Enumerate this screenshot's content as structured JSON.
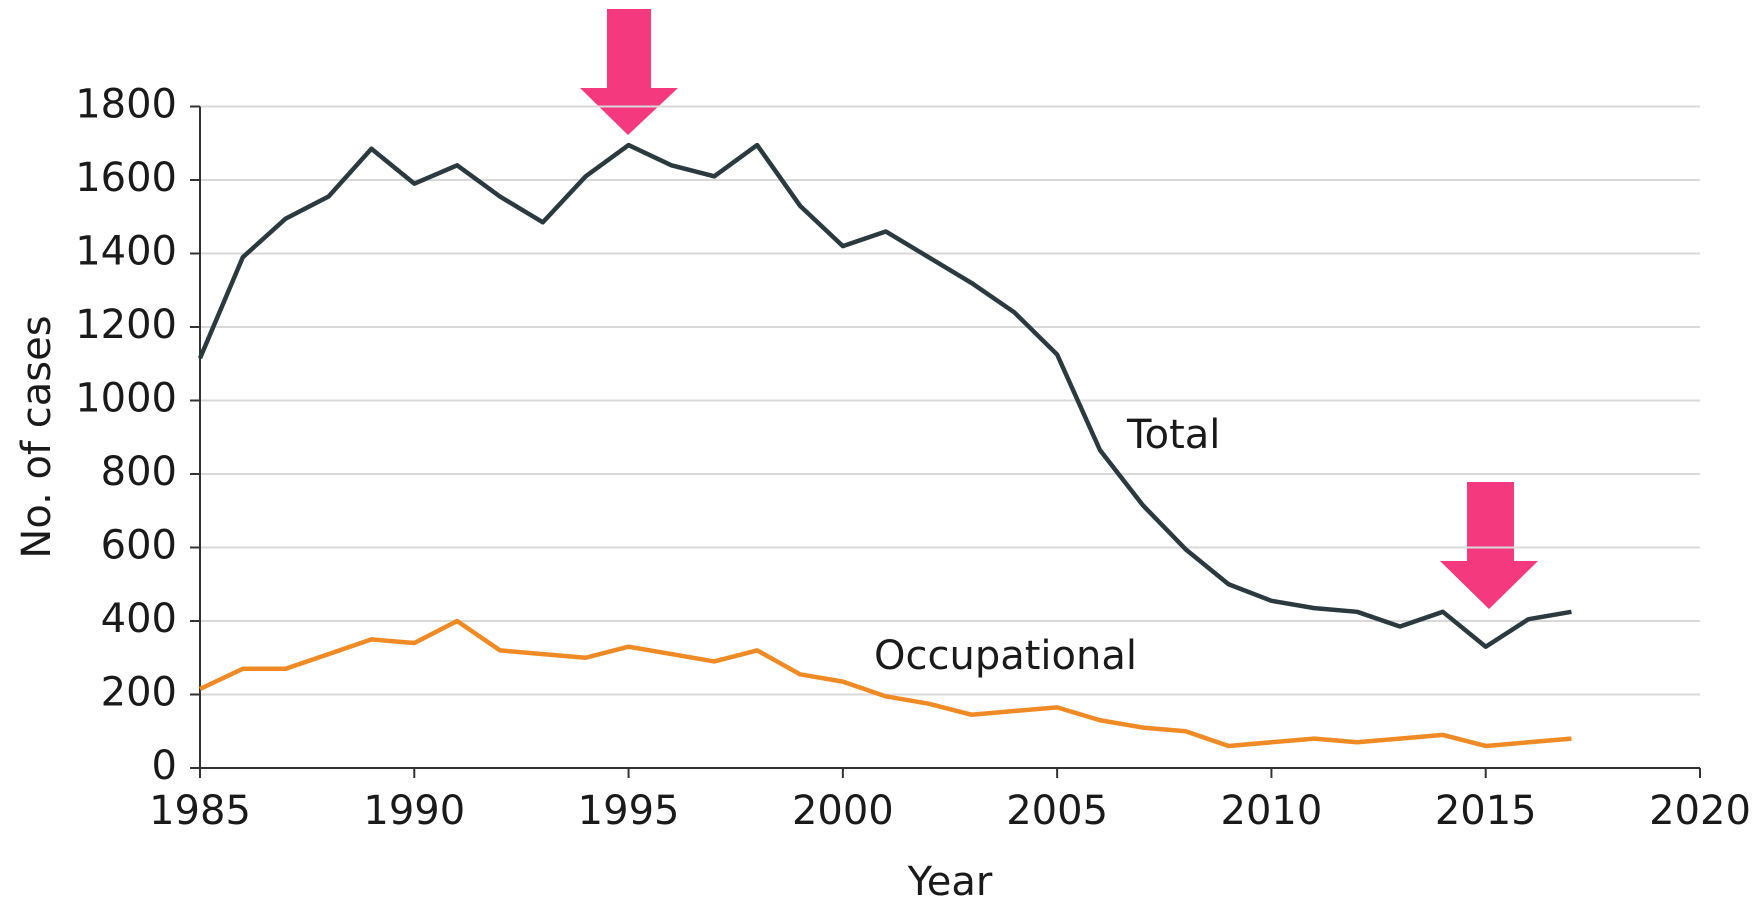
{
  "chart_data": {
    "type": "line",
    "x": [
      1985,
      1986,
      1987,
      1988,
      1989,
      1990,
      1991,
      1992,
      1993,
      1994,
      1995,
      1996,
      1997,
      1998,
      1999,
      2000,
      2001,
      2002,
      2003,
      2004,
      2005,
      2006,
      2007,
      2008,
      2009,
      2010,
      2011,
      2012,
      2013,
      2014,
      2015,
      2016,
      2017
    ],
    "series": [
      {
        "name": "Total",
        "color": "#2b3a3e",
        "values": [
          1115,
          1390,
          1495,
          1555,
          1685,
          1590,
          1640,
          1555,
          1485,
          1610,
          1695,
          1640,
          1610,
          1695,
          1530,
          1420,
          1460,
          1390,
          1320,
          1240,
          1125,
          865,
          715,
          595,
          500,
          455,
          435,
          425,
          385,
          425,
          330,
          405,
          425
        ]
      },
      {
        "name": "Occupational",
        "color": "#f08a24",
        "values": [
          215,
          270,
          270,
          310,
          350,
          340,
          400,
          320,
          310,
          300,
          330,
          310,
          290,
          320,
          255,
          235,
          195,
          175,
          145,
          155,
          165,
          130,
          110,
          100,
          60,
          70,
          80,
          70,
          80,
          90,
          60,
          70,
          80
        ]
      }
    ],
    "xlabel": "Year",
    "ylabel": "No. of cases",
    "xlim": [
      1985,
      2020
    ],
    "xticks": [
      1985,
      1990,
      1995,
      2000,
      2005,
      2010,
      2015,
      2020
    ],
    "ylim": [
      0,
      1800
    ],
    "yticks": [
      0,
      200,
      400,
      600,
      800,
      1000,
      1200,
      1400,
      1600,
      1800
    ],
    "grid": true
  }
}
